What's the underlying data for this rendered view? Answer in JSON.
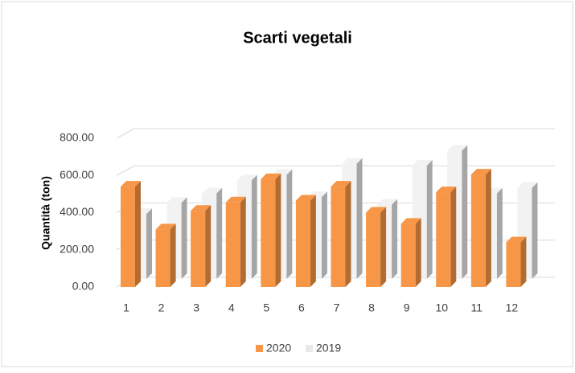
{
  "chart_data": {
    "type": "bar3d",
    "title": "Scarti vegetali",
    "ylabel": "Quantità (ton)",
    "categories": [
      "1",
      "2",
      "3",
      "4",
      "5",
      "6",
      "7",
      "8",
      "9",
      "10",
      "11",
      "12"
    ],
    "series": [
      {
        "name": "2020",
        "color": "#f79646",
        "values": [
          540,
          310,
          410,
          455,
          580,
          465,
          540,
          400,
          340,
          510,
          605,
          240
        ]
      },
      {
        "name": "2019",
        "color": "#f2f2f2",
        "values": [
          350,
          410,
          460,
          530,
          560,
          440,
          620,
          400,
          610,
          690,
          460,
          490
        ]
      }
    ],
    "ylim": [
      0,
      800
    ],
    "yticks": [
      {
        "value": 0,
        "label": "0.00"
      },
      {
        "value": 200,
        "label": "200.00"
      },
      {
        "value": 400,
        "label": "400.00"
      },
      {
        "value": 600,
        "label": "600.00"
      },
      {
        "value": 800,
        "label": "800.00"
      }
    ],
    "grid": true,
    "legend": "bottom"
  }
}
